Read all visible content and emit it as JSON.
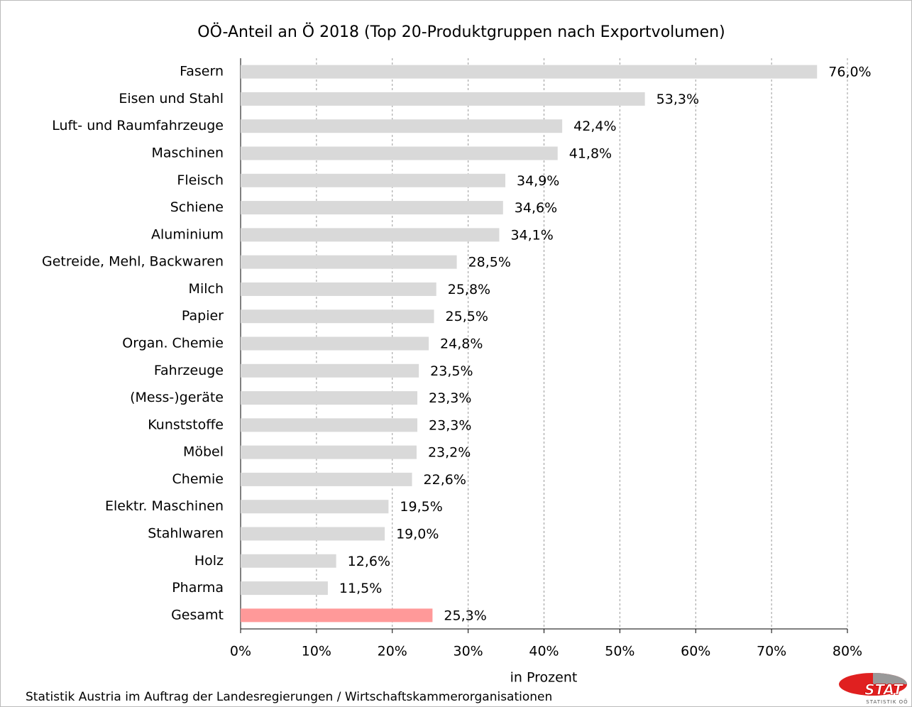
{
  "chart_data": {
    "type": "bar",
    "orientation": "horizontal",
    "title": "OÖ-Anteil an Ö 2018 (Top 20-Produktgruppen nach Exportvolumen)",
    "x_label": "in Prozent",
    "source": "Statistik Austria im Auftrag der Landesregierungen / Wirtschaftskammerorganisationen",
    "logo": "STAT",
    "logo_sub": "STATISTIK OÖ",
    "categories": [
      "Fasern",
      "Eisen und Stahl",
      "Luft- und Raumfahrzeuge",
      "Maschinen",
      "Fleisch",
      "Schiene",
      "Aluminium",
      "Getreide, Mehl, Backwaren",
      "Milch",
      "Papier",
      "Organ. Chemie",
      "Fahrzeuge",
      "(Mess-)geräte",
      "Kunststoffe",
      "Möbel",
      "Chemie",
      "Elektr. Maschinen",
      "Stahlwaren",
      "Holz",
      "Pharma",
      "Gesamt"
    ],
    "values": [
      76.0,
      53.3,
      42.4,
      41.8,
      34.9,
      34.6,
      34.1,
      28.5,
      25.8,
      25.5,
      24.8,
      23.5,
      23.3,
      23.3,
      23.2,
      22.6,
      19.5,
      19.0,
      12.6,
      11.5,
      25.3
    ],
    "value_labels": [
      "76,0%",
      "53,3%",
      "42,4%",
      "41,8%",
      "34,9%",
      "34,6%",
      "34,1%",
      "28,5%",
      "25,8%",
      "25,5%",
      "24,8%",
      "23,5%",
      "23,3%",
      "23,3%",
      "23,2%",
      "22,6%",
      "19,5%",
      "19,0%",
      "12,6%",
      "11,5%",
      "25,3%"
    ],
    "colors": [
      "#d9d9d9",
      "#d9d9d9",
      "#d9d9d9",
      "#d9d9d9",
      "#d9d9d9",
      "#d9d9d9",
      "#d9d9d9",
      "#d9d9d9",
      "#d9d9d9",
      "#d9d9d9",
      "#d9d9d9",
      "#d9d9d9",
      "#d9d9d9",
      "#d9d9d9",
      "#d9d9d9",
      "#d9d9d9",
      "#d9d9d9",
      "#d9d9d9",
      "#d9d9d9",
      "#d9d9d9",
      "#ff9999"
    ],
    "xlim": [
      0,
      80
    ],
    "xticks": [
      {
        "value": 0,
        "label": "0%"
      },
      {
        "value": 10,
        "label": "10%"
      },
      {
        "value": 20,
        "label": "20%"
      },
      {
        "value": 30,
        "label": "30%"
      },
      {
        "value": 40,
        "label": "40%"
      },
      {
        "value": 50,
        "label": "50%"
      },
      {
        "value": 60,
        "label": "60%"
      },
      {
        "value": 70,
        "label": "70%"
      },
      {
        "value": 80,
        "label": "80%"
      }
    ],
    "grid": true
  }
}
